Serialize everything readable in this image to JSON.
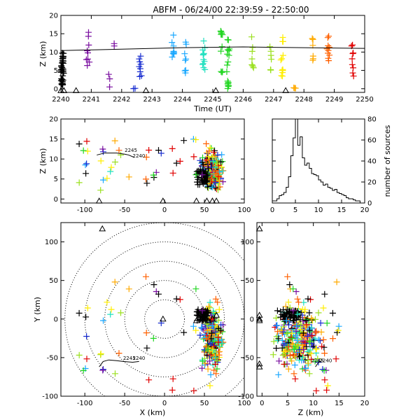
{
  "colors": {
    "sequence": [
      "#000000",
      "#7a0fa0",
      "#1a2fd0",
      "#1aa8ff",
      "#22e0c0",
      "#22d622",
      "#9be020",
      "#ffee00",
      "#ffaa00",
      "#ff6000",
      "#e00000"
    ],
    "triangle": "#000000",
    "axis": "#000000"
  },
  "chart_data": {
    "title": "ABFM - 06/24/00 22:39:59 - 22:50:00",
    "panels": [
      {
        "id": "time-height",
        "type": "scatter",
        "xlabel": "Time (UT)",
        "ylabel": "Z (km)",
        "xlim": [
          2240,
          2250
        ],
        "ylim": [
          -1,
          20
        ],
        "x_ticks": [
          "2240",
          "2241",
          "2242",
          "2243",
          "2244",
          "2245",
          "2246",
          "2247",
          "2248",
          "2249",
          "2250"
        ],
        "y_ticks": [
          "0",
          "5",
          "10",
          "15",
          "20"
        ],
        "clusters": [
          {
            "t": 2240.05,
            "z": [
              1,
              10.5
            ],
            "n": 40,
            "color": 0
          },
          {
            "t": 2240.9,
            "z": [
              4,
              15.5
            ],
            "n": 9,
            "color": 1
          },
          {
            "t": 2241.6,
            "z": [
              0,
              4
            ],
            "n": 3,
            "color": 1
          },
          {
            "t": 2241.75,
            "z": [
              11.5,
              12.5
            ],
            "n": 2,
            "color": 1
          },
          {
            "t": 2242.6,
            "z": [
              3,
              11
            ],
            "n": 9,
            "color": 2
          },
          {
            "t": 2242.4,
            "z": [
              0,
              1
            ],
            "n": 2,
            "color": 2
          },
          {
            "t": 2243.7,
            "z": [
              8,
              15
            ],
            "n": 9,
            "color": 3
          },
          {
            "t": 2244.1,
            "z": [
              4,
              13
            ],
            "n": 8,
            "color": 3
          },
          {
            "t": 2244.7,
            "z": [
              4,
              14
            ],
            "n": 12,
            "color": 4
          },
          {
            "t": 2245.3,
            "z": [
              3,
              16
            ],
            "n": 12,
            "color": 5
          },
          {
            "t": 2245.5,
            "z": [
              0,
              15
            ],
            "n": 18,
            "color": 5
          },
          {
            "t": 2246.3,
            "z": [
              5,
              15
            ],
            "n": 8,
            "color": 6
          },
          {
            "t": 2246.9,
            "z": [
              5,
              12
            ],
            "n": 6,
            "color": 6
          },
          {
            "t": 2247.3,
            "z": [
              2,
              17
            ],
            "n": 12,
            "color": 7
          },
          {
            "t": 2247.7,
            "z": [
              0,
              1
            ],
            "n": 3,
            "color": 8
          },
          {
            "t": 2248.3,
            "z": [
              6,
              14
            ],
            "n": 7,
            "color": 8
          },
          {
            "t": 2248.8,
            "z": [
              7,
              15
            ],
            "n": 10,
            "color": 9
          },
          {
            "t": 2249.6,
            "z": [
              3,
              14
            ],
            "n": 9,
            "color": 10
          }
        ],
        "black_line": {
          "t": [
            2240,
            2242,
            2244,
            2246,
            2248,
            2250
          ],
          "z": [
            10.4,
            10.8,
            11.2,
            11.4,
            11.2,
            11.0
          ]
        },
        "triangles": {
          "t": [
            2240.0,
            2240.1,
            2240.5,
            2242.8,
            2245.1,
            2247.4
          ],
          "z": [
            -0.5,
            -0.5,
            -0.5,
            -0.5,
            -0.5,
            -0.5
          ]
        }
      },
      {
        "id": "x-z",
        "type": "scatter",
        "xlabel": "",
        "ylabel": "Z (km)",
        "xlim": [
          -130,
          100
        ],
        "ylim": [
          -1,
          20
        ],
        "x_ticks": [
          "-100",
          "-50",
          "0",
          "50",
          "100"
        ],
        "y_ticks": [
          "0",
          "5",
          "10",
          "15",
          "20"
        ],
        "track": {
          "x": [
            -85,
            -75,
            -60,
            -50,
            -45,
            -38
          ],
          "z": [
            11.0,
            11.5,
            11.5,
            11.2,
            11.0,
            10.4
          ]
        },
        "track_labels": [
          "2245",
          "2240"
        ],
        "triangles": {
          "x": [
            -82,
            -2,
            40,
            53,
            60,
            65
          ],
          "z": [
            -0.5,
            -0.5,
            -0.5,
            -0.5,
            -0.5,
            -0.5
          ]
        }
      },
      {
        "id": "histogram",
        "type": "bar",
        "xlabel": "",
        "ylabel": "number of sources",
        "xlim": [
          0,
          20
        ],
        "ylim": [
          0,
          80
        ],
        "x_ticks": [
          "0",
          "5",
          "10",
          "15",
          "20"
        ],
        "y_ticks": [
          "0",
          "20",
          "40",
          "60",
          "80"
        ],
        "bin_width": 0.5,
        "values": [
          2,
          2,
          4,
          7,
          8,
          10,
          15,
          25,
          45,
          62,
          80,
          55,
          63,
          43,
          36,
          38,
          33,
          28,
          27,
          26,
          22,
          20,
          17,
          18,
          15,
          14,
          12,
          13,
          10,
          9,
          8,
          7,
          5,
          4,
          4,
          3,
          2,
          2,
          0,
          0
        ]
      },
      {
        "id": "x-y",
        "type": "scatter",
        "xlabel": "X (km)",
        "ylabel": "Y (km)",
        "xlim": [
          -130,
          100
        ],
        "ylim": [
          -100,
          125
        ],
        "x_ticks": [
          "-100",
          "-50",
          "0",
          "50",
          "100"
        ],
        "y_ticks": [
          "-100",
          "-50",
          "0",
          "50",
          "100"
        ],
        "range_rings_km": [
          25,
          50,
          75,
          100,
          125
        ],
        "track": {
          "x": [
            -82,
            -77,
            -70,
            -60,
            -52,
            -40,
            -32
          ],
          "y": [
            -62,
            -55,
            -53,
            -54,
            -55,
            -56,
            -55
          ]
        },
        "track_labels": [
          "2245",
          "2240"
        ],
        "triangles": {
          "x": [
            -2,
            40,
            55,
            60,
            65,
            -78
          ],
          "y": [
            0,
            -2,
            -2,
            0,
            5,
            117
          ]
        }
      },
      {
        "id": "z-y",
        "type": "scatter",
        "xlabel": "Z (km)",
        "ylabel": "",
        "xlim": [
          -1,
          20
        ],
        "ylim": [
          -100,
          125
        ],
        "x_ticks": [
          "0",
          "5",
          "10",
          "15",
          "20"
        ],
        "y_ticks": [
          "-100",
          "-50",
          "0",
          "50",
          "100"
        ],
        "track": {
          "z": [
            10.4,
            10.8,
            11.2,
            11.5,
            11.0
          ],
          "y": [
            -62,
            -58,
            -55,
            -55,
            -56
          ]
        },
        "track_labels": [
          "2245",
          "2240"
        ],
        "triangles": {
          "z": [
            -0.5,
            -0.5,
            -0.5,
            -0.5,
            -0.5,
            -0.5
          ],
          "y": [
            117,
            -2,
            5,
            0,
            -58,
            -62
          ]
        }
      }
    ]
  }
}
